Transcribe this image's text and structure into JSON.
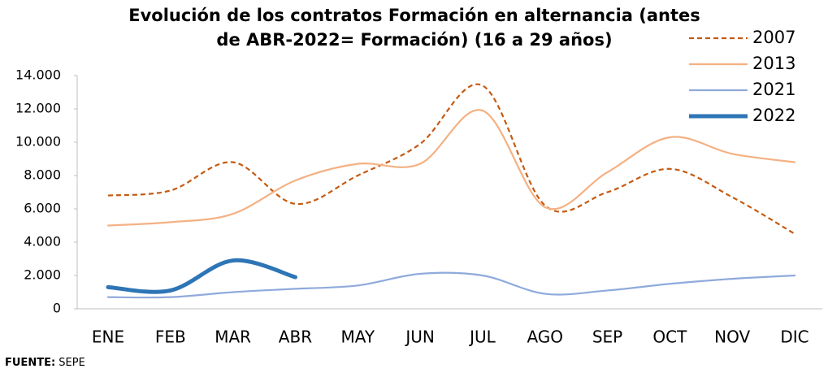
{
  "chart_data": {
    "type": "line",
    "title": [
      "Evolución de los contratos Formación en alternancia (antes",
      "de ABR-2022= Formación) (16 a 29 años)"
    ],
    "categories": [
      "ENE",
      "FEB",
      "MAR",
      "ABR",
      "MAY",
      "JUN",
      "JUL",
      "AGO",
      "SEP",
      "OCT",
      "NOV",
      "DIC"
    ],
    "series": [
      {
        "name": "2007",
        "color": "#C55A11",
        "dashed": true,
        "width": 2.2,
        "values": [
          6800,
          7100,
          8800,
          6300,
          8000,
          9900,
          13400,
          6200,
          7000,
          8400,
          6700,
          4500
        ]
      },
      {
        "name": "2013",
        "color": "#F4B183",
        "dashed": false,
        "width": 2.2,
        "values": [
          5000,
          5200,
          5700,
          7700,
          8700,
          8700,
          11900,
          6100,
          8200,
          10300,
          9300,
          8800
        ]
      },
      {
        "name": "2021",
        "color": "#8FAADC",
        "dashed": false,
        "width": 2.2,
        "values": [
          700,
          700,
          1000,
          1200,
          1400,
          2100,
          2000,
          900,
          1100,
          1500,
          1800,
          2000
        ]
      },
      {
        "name": "2022",
        "color": "#2E75B6",
        "dashed": false,
        "width": 5,
        "values": [
          1300,
          1100,
          2900,
          1900,
          null,
          null,
          null,
          null,
          null,
          null,
          null,
          null
        ]
      }
    ],
    "ylim": [
      0,
      14000
    ],
    "yticks": [
      0,
      {
        "value": 2000,
        "label": "2.000"
      },
      {
        "value": 4000,
        "label": "4.000"
      },
      {
        "value": 6000,
        "label": "6.000"
      },
      {
        "value": 8000,
        "label": "8.000"
      },
      {
        "value": 10000,
        "label": "10.000"
      },
      {
        "value": 12000,
        "label": "12.000"
      },
      {
        "value": 14000,
        "label": "14.000"
      }
    ],
    "grid": false,
    "legend": "top-right",
    "source": {
      "label": "FUENTE:",
      "text": "SEPE"
    }
  }
}
